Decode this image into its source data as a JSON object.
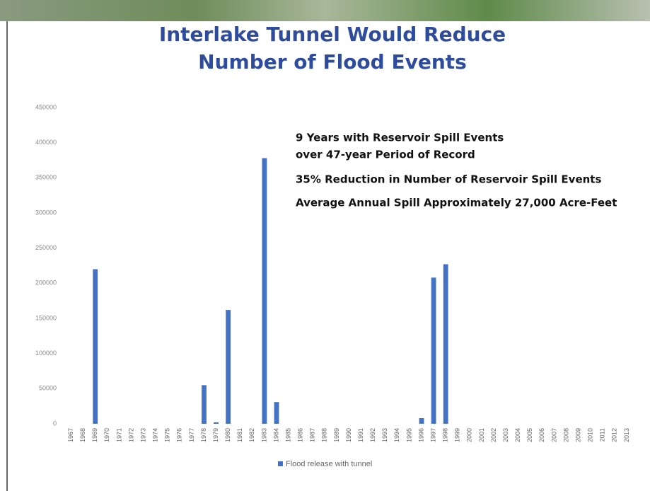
{
  "chart_data": {
    "type": "bar",
    "title": [
      "Interlake Tunnel Would Reduce",
      "Number of Flood Events"
    ],
    "annotations": [
      "9 Years with Reservoir Spill Events",
      "over 47-year Period of Record",
      "35% Reduction in Number of Reservoir Spill Events",
      "Average Annual Spill Approximately 27,000 Acre-Feet"
    ],
    "categories": [
      "1967",
      "1968",
      "1969",
      "1970",
      "1971",
      "1972",
      "1973",
      "1974",
      "1975",
      "1976",
      "1977",
      "1978",
      "1979",
      "1980",
      "1981",
      "1982",
      "1983",
      "1984",
      "1985",
      "1986",
      "1987",
      "1988",
      "1989",
      "1990",
      "1991",
      "1992",
      "1993",
      "1994",
      "1995",
      "1996",
      "1997",
      "1998",
      "1999",
      "2000",
      "2001",
      "2002",
      "2003",
      "2004",
      "2005",
      "2006",
      "2007",
      "2008",
      "2009",
      "2010",
      "2011",
      "2012",
      "2013"
    ],
    "series": [
      {
        "name": "Flood release with tunnel",
        "color": "#4472c4",
        "values": [
          0,
          0,
          220000,
          0,
          0,
          0,
          0,
          0,
          0,
          0,
          0,
          55000,
          2000,
          162000,
          0,
          0,
          378000,
          31000,
          0,
          0,
          0,
          0,
          0,
          0,
          0,
          0,
          0,
          0,
          0,
          8000,
          208000,
          227000,
          0,
          0,
          0,
          0,
          0,
          0,
          0,
          0,
          0,
          0,
          0,
          0,
          0,
          0,
          0
        ]
      }
    ],
    "ylim": [
      0,
      450000
    ],
    "yticks": [
      0,
      50000,
      100000,
      150000,
      200000,
      250000,
      300000,
      350000,
      400000,
      450000
    ],
    "grid": false,
    "legend": "bottom"
  }
}
